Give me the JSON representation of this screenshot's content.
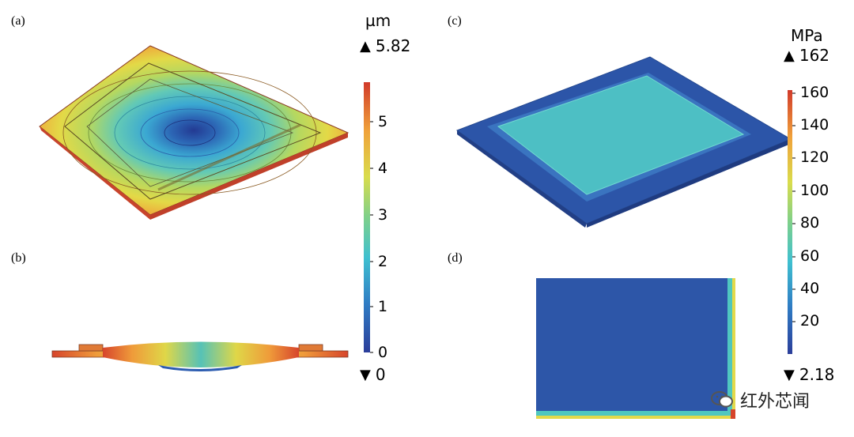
{
  "panels": {
    "a": "(a)",
    "b": "(b)",
    "c": "(c)",
    "d": "(d)"
  },
  "colorbar_left": {
    "unit": "µm",
    "max_marker": "5.82",
    "min_marker": "0",
    "ticks": [
      "5",
      "4",
      "3",
      "2",
      "1",
      "0"
    ]
  },
  "colorbar_right": {
    "unit": "MPa",
    "max_marker": "162",
    "min_marker": "2.18",
    "ticks": [
      "160",
      "140",
      "120",
      "100",
      "80",
      "60",
      "40",
      "20"
    ]
  },
  "colors": {
    "deep_blue": "#2d56a8",
    "teal": "#4fc7c0",
    "yellow": "#e3d94b",
    "red": "#d6442b"
  },
  "watermark": {
    "text": "红外芯闻",
    "icon": "wechat-icon"
  }
}
